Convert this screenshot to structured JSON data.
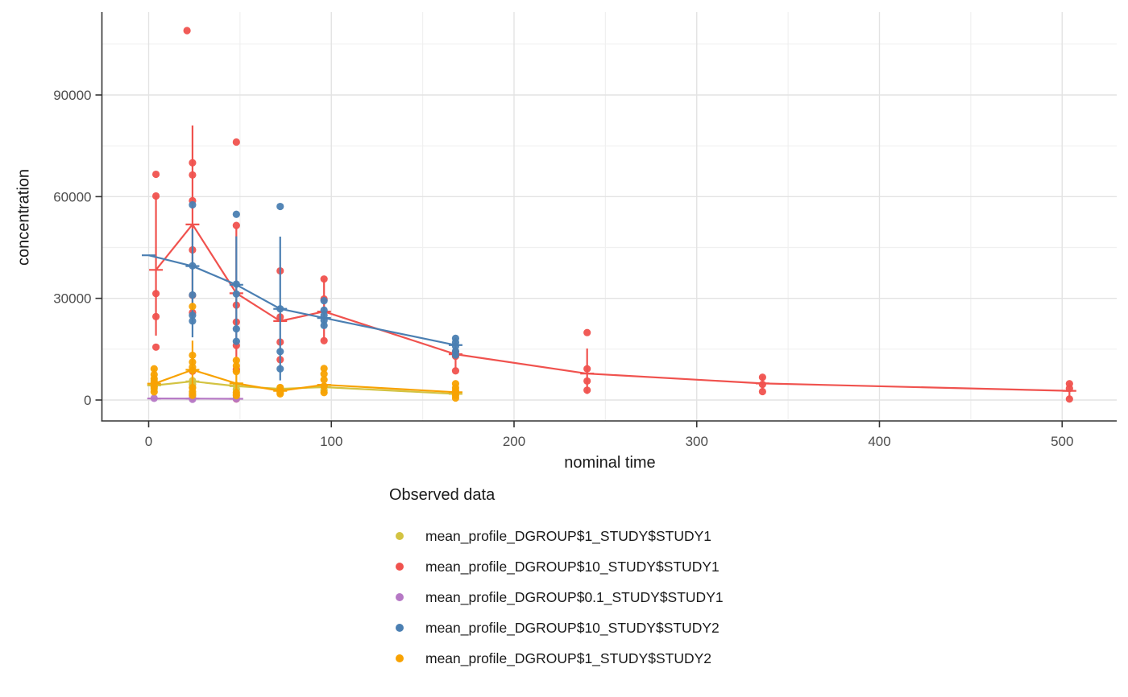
{
  "legend": {
    "title": "Observed data",
    "items": [
      {
        "label": "mean_profile_DGROUP$1_STUDY$STUDY1",
        "color": "#d3c342"
      },
      {
        "label": "mean_profile_DGROUP$10_STUDY$STUDY1",
        "color": "#f0524e"
      },
      {
        "label": "mean_profile_DGROUP$0.1_STUDY$STUDY1",
        "color": "#b678c5"
      },
      {
        "label": "mean_profile_DGROUP$10_STUDY$STUDY2",
        "color": "#4b7fb2"
      },
      {
        "label": "mean_profile_DGROUP$1_STUDY$STUDY2",
        "color": "#f8a202"
      }
    ]
  },
  "chart_data": {
    "type": "scatter",
    "title": "",
    "xlabel": "nominal time",
    "ylabel": "concentration",
    "xlim": [
      -26,
      530
    ],
    "ylim": [
      -6000,
      114500
    ],
    "grid": true,
    "legend_position": "bottom-left",
    "x_ticks": [
      0,
      100,
      200,
      300,
      400,
      500
    ],
    "x_minor_ticks": [
      50,
      150,
      250,
      350,
      450
    ],
    "y_ticks": [
      0,
      30000,
      60000,
      90000
    ],
    "y_minor_ticks": [
      15000,
      45000,
      75000,
      105000
    ],
    "axis_color": "#333333",
    "tick_label_color": "#4d4d4d",
    "major_grid_color": "#e3e3e3",
    "minor_grid_color": "#f0f0f0",
    "series": [
      {
        "name": "mean_profile_DGROUP$1_STUDY$STUDY1",
        "color": "#d3c342",
        "means": [
          [
            3,
            4300
          ],
          [
            24,
            5500
          ],
          [
            48,
            4100
          ],
          [
            72,
            3300
          ],
          [
            96,
            3800
          ],
          [
            168,
            1800
          ]
        ],
        "error_bars": [
          [
            3,
            2300,
            6000
          ]
        ],
        "points": [
          [
            3,
            5600
          ],
          [
            3,
            4300
          ],
          [
            3,
            3300
          ],
          [
            24,
            5700
          ],
          [
            24,
            4600
          ],
          [
            24,
            3600
          ],
          [
            24,
            1900
          ],
          [
            48,
            4300
          ],
          [
            48,
            3200
          ],
          [
            48,
            1600
          ],
          [
            72,
            3500
          ],
          [
            72,
            2600
          ],
          [
            96,
            4000
          ],
          [
            96,
            2900
          ],
          [
            168,
            2100
          ],
          [
            168,
            1300
          ]
        ]
      },
      {
        "name": "mean_profile_DGROUP$10_STUDY$STUDY1",
        "color": "#f0524e",
        "means": [
          [
            4,
            38400
          ],
          [
            24,
            51800
          ],
          [
            48,
            31500
          ],
          [
            72,
            23300
          ],
          [
            96,
            26100
          ],
          [
            168,
            13500
          ],
          [
            240,
            7800
          ],
          [
            336,
            4900
          ],
          [
            504,
            2700
          ]
        ],
        "error_bars": [
          [
            4,
            19000,
            60200
          ],
          [
            24,
            23500,
            81000
          ],
          [
            48,
            10000,
            51000
          ],
          [
            96,
            17500,
            35700
          ],
          [
            168,
            9000,
            15500
          ],
          [
            240,
            1800,
            15200
          ],
          [
            336,
            2800,
            7000
          ],
          [
            504,
            600,
            5100
          ]
        ],
        "points": [
          [
            4,
            66600
          ],
          [
            4,
            60200
          ],
          [
            4,
            31400
          ],
          [
            4,
            24600
          ],
          [
            4,
            15600
          ],
          [
            21,
            109000
          ],
          [
            24,
            70000
          ],
          [
            24,
            66400
          ],
          [
            24,
            58800
          ],
          [
            24,
            44300
          ],
          [
            24,
            30900
          ],
          [
            24,
            25800
          ],
          [
            24,
            8500
          ],
          [
            48,
            76100
          ],
          [
            48,
            51500
          ],
          [
            48,
            28000
          ],
          [
            48,
            23000
          ],
          [
            48,
            16100
          ],
          [
            48,
            9000
          ],
          [
            48,
            300
          ],
          [
            72,
            38100
          ],
          [
            72,
            24500
          ],
          [
            72,
            17100
          ],
          [
            72,
            11900
          ],
          [
            96,
            35700
          ],
          [
            96,
            29800
          ],
          [
            96,
            17500
          ],
          [
            168,
            14100
          ],
          [
            168,
            12900
          ],
          [
            168,
            8600
          ],
          [
            240,
            19900
          ],
          [
            240,
            9200
          ],
          [
            240,
            5600
          ],
          [
            240,
            2900
          ],
          [
            336,
            6700
          ],
          [
            336,
            4600
          ],
          [
            336,
            2500
          ],
          [
            504,
            4800
          ],
          [
            504,
            3400
          ],
          [
            504,
            300
          ]
        ]
      },
      {
        "name": "mean_profile_DGROUP$0.1_STUDY$STUDY1",
        "color": "#b678c5",
        "means": [
          [
            3,
            450
          ],
          [
            24,
            420
          ],
          [
            48,
            350
          ]
        ],
        "error_bars": [],
        "points": [
          [
            3,
            500
          ],
          [
            24,
            700
          ],
          [
            24,
            200
          ],
          [
            48,
            350
          ]
        ]
      },
      {
        "name": "mean_profile_DGROUP$10_STUDY$STUDY2",
        "color": "#4b7fb2",
        "means": [
          [
            0,
            42700
          ],
          [
            24,
            39500
          ],
          [
            48,
            34000
          ],
          [
            72,
            26900
          ],
          [
            96,
            24200
          ],
          [
            168,
            16200
          ]
        ],
        "error_bars": [
          [
            24,
            18500,
            50500
          ],
          [
            48,
            17200,
            48300
          ],
          [
            72,
            5800,
            48200
          ],
          [
            96,
            21500,
            27500
          ],
          [
            168,
            13400,
            18400
          ]
        ],
        "points": [
          [
            24,
            57600
          ],
          [
            24,
            39600
          ],
          [
            24,
            31000
          ],
          [
            24,
            25000
          ],
          [
            24,
            23300
          ],
          [
            48,
            54800
          ],
          [
            48,
            34200
          ],
          [
            48,
            31300
          ],
          [
            48,
            21000
          ],
          [
            48,
            17300
          ],
          [
            72,
            57100
          ],
          [
            72,
            26900
          ],
          [
            72,
            14300
          ],
          [
            72,
            9200
          ],
          [
            96,
            29300
          ],
          [
            96,
            26500
          ],
          [
            96,
            25000
          ],
          [
            96,
            23500
          ],
          [
            96,
            22000
          ],
          [
            168,
            18200
          ],
          [
            168,
            17000
          ],
          [
            168,
            15900
          ],
          [
            168,
            14400
          ],
          [
            168,
            13300
          ]
        ]
      },
      {
        "name": "mean_profile_DGROUP$1_STUDY$STUDY2",
        "color": "#f8a202",
        "means": [
          [
            3,
            4800
          ],
          [
            24,
            8900
          ],
          [
            48,
            4900
          ],
          [
            72,
            2700
          ],
          [
            96,
            4500
          ],
          [
            168,
            2300
          ]
        ],
        "error_bars": [
          [
            3,
            2200,
            9300
          ],
          [
            24,
            1300,
            17500
          ],
          [
            48,
            1200,
            11600
          ]
        ],
        "points": [
          [
            3,
            9200
          ],
          [
            3,
            7500
          ],
          [
            3,
            6300
          ],
          [
            3,
            5100
          ],
          [
            3,
            3900
          ],
          [
            3,
            2400
          ],
          [
            24,
            27600
          ],
          [
            24,
            13200
          ],
          [
            24,
            11200
          ],
          [
            24,
            9700
          ],
          [
            24,
            8700
          ],
          [
            24,
            3700
          ],
          [
            24,
            2500
          ],
          [
            24,
            1400
          ],
          [
            48,
            11700
          ],
          [
            48,
            10100
          ],
          [
            48,
            8400
          ],
          [
            48,
            2200
          ],
          [
            48,
            1300
          ],
          [
            72,
            3700
          ],
          [
            72,
            2900
          ],
          [
            72,
            2200
          ],
          [
            72,
            1800
          ],
          [
            96,
            9300
          ],
          [
            96,
            7700
          ],
          [
            96,
            6000
          ],
          [
            96,
            4100
          ],
          [
            96,
            2200
          ],
          [
            168,
            4800
          ],
          [
            168,
            3600
          ],
          [
            168,
            2700
          ],
          [
            168,
            1600
          ],
          [
            168,
            600
          ]
        ]
      }
    ]
  }
}
